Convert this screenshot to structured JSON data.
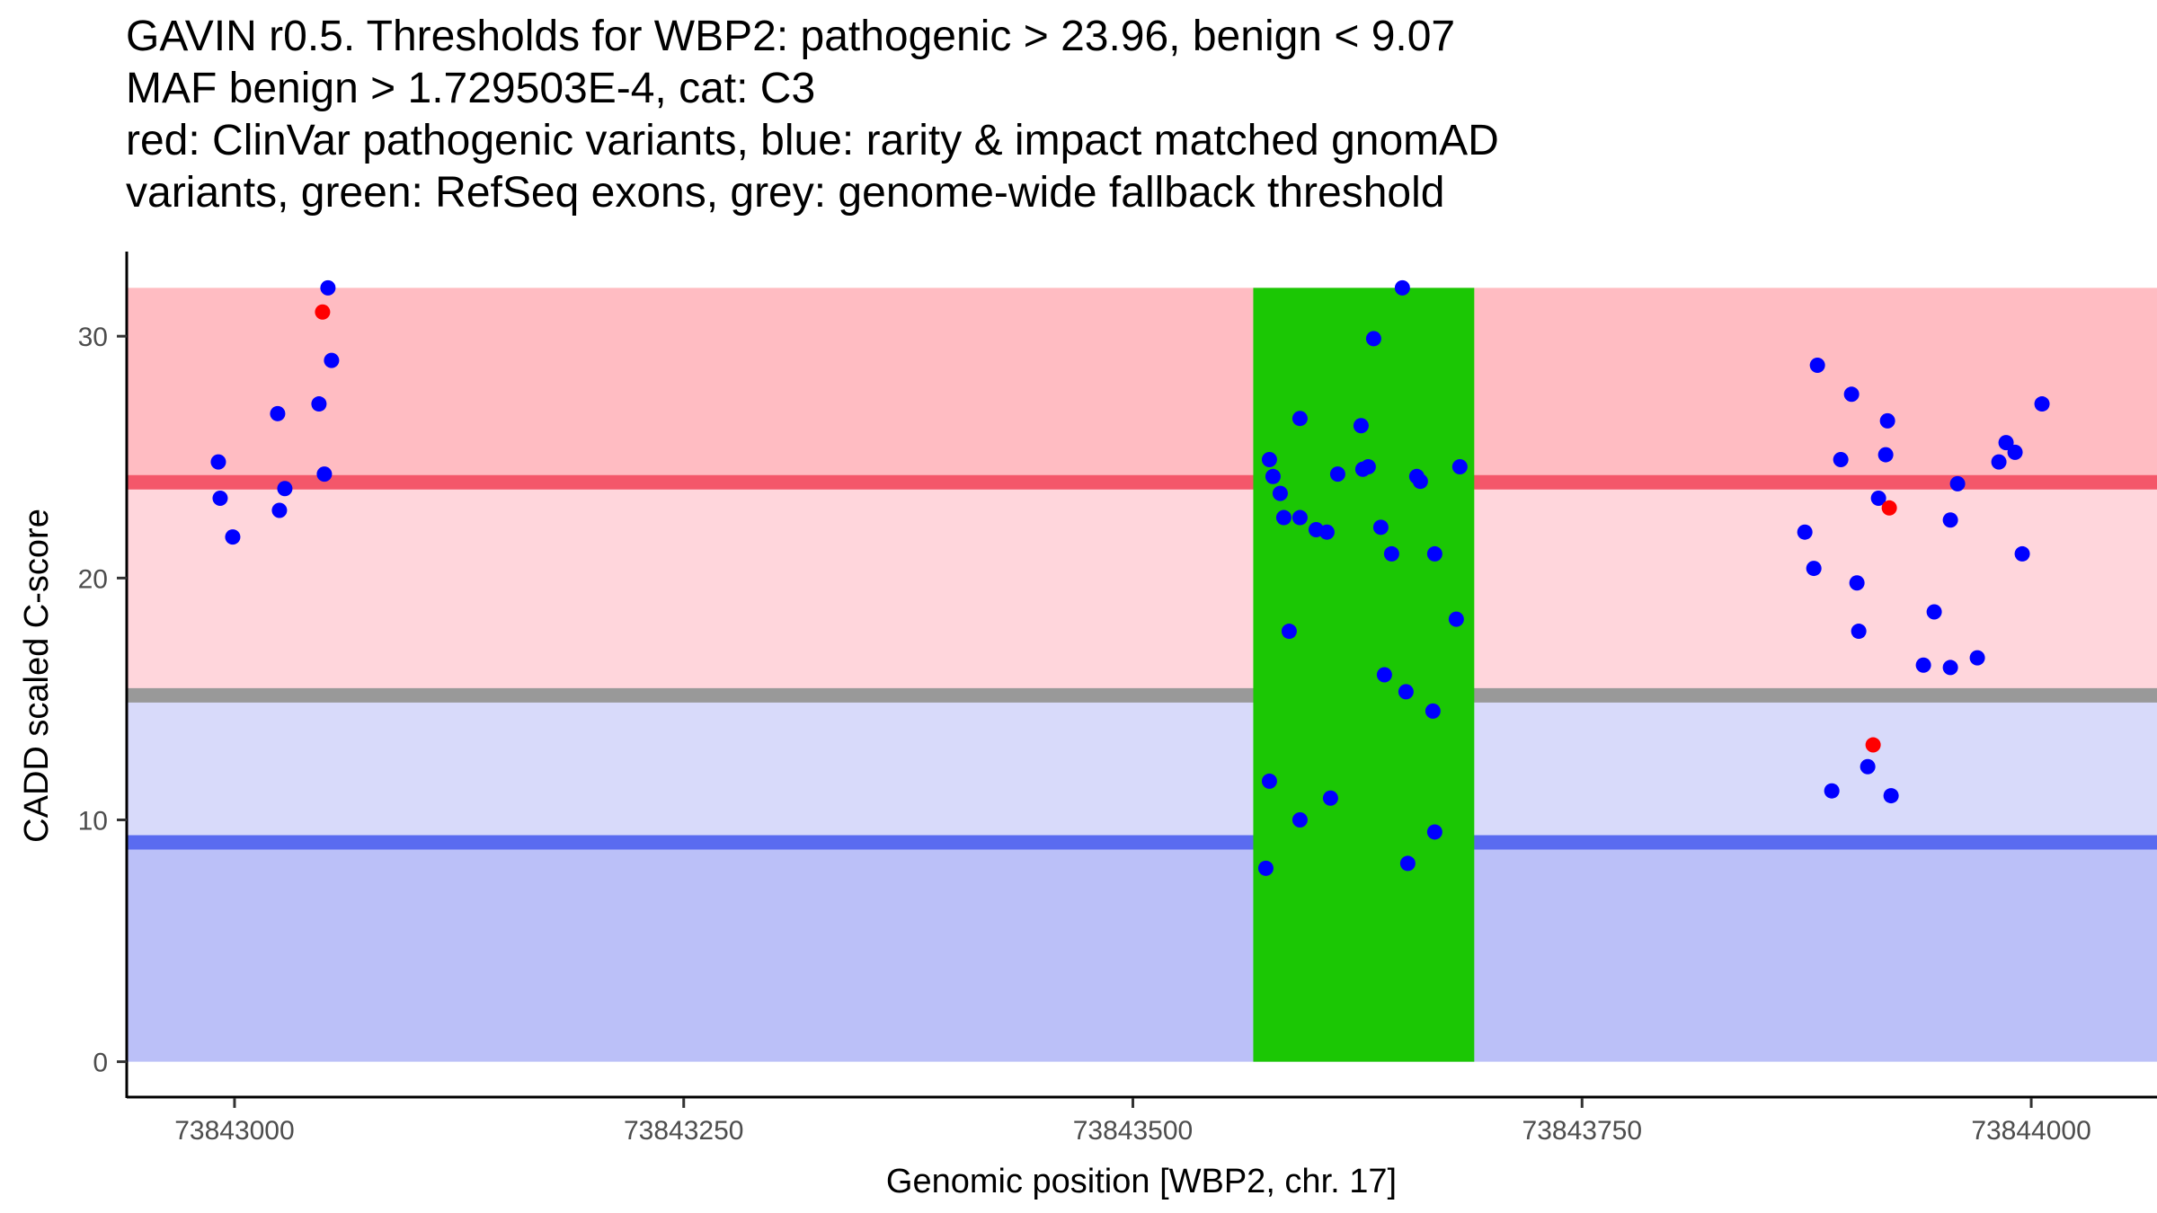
{
  "chart_data": {
    "type": "scatter",
    "title_lines": [
      "GAVIN r0.5. Thresholds for WBP2: pathogenic > 23.96, benign < 9.07",
      "MAF benign > 1.729503E-4, cat: C3",
      "red: ClinVar pathogenic variants, blue: rarity & impact matched gnomAD",
      "variants, green: RefSeq exons, grey: genome-wide fallback threshold"
    ],
    "xlabel": "Genomic position [WBP2, chr. 17]",
    "ylabel": "CADD scaled C-score",
    "xlim": [
      73842940,
      73844070
    ],
    "ylim": [
      -1.5,
      33.5
    ],
    "x_ticks": [
      {
        "value": 73843000,
        "label": "73843000"
      },
      {
        "value": 73843250,
        "label": "73843250"
      },
      {
        "value": 73843500,
        "label": "73843500"
      },
      {
        "value": 73843750,
        "label": "73843750"
      },
      {
        "value": 73844000,
        "label": "73844000"
      }
    ],
    "y_ticks": [
      {
        "value": 0,
        "label": "0"
      },
      {
        "value": 10,
        "label": "10"
      },
      {
        "value": 20,
        "label": "20"
      },
      {
        "value": 30,
        "label": "30"
      }
    ],
    "regions": [
      {
        "name": "pathogenic-zone",
        "y0": 23.96,
        "y1": 32,
        "color": "#FFBCC2"
      },
      {
        "name": "upper-intermediate-zone",
        "y0": 15.15,
        "y1": 23.96,
        "color": "#FFD6DC"
      },
      {
        "name": "lower-intermediate-zone",
        "y0": 9.07,
        "y1": 15.15,
        "color": "#D8DAFA"
      },
      {
        "name": "benign-zone",
        "y0": 0,
        "y1": 9.07,
        "color": "#BBC0F8"
      }
    ],
    "threshold_lines": [
      {
        "name": "pathogenic-threshold",
        "y": 23.96,
        "color": "#F4576A"
      },
      {
        "name": "fallback-threshold",
        "y": 15.15,
        "color": "#999999"
      },
      {
        "name": "benign-threshold",
        "y": 9.07,
        "color": "#5A6BF0"
      }
    ],
    "exon": {
      "x0": 73843567,
      "x1": 73843690,
      "y0": 0,
      "y1": 32,
      "color": "#1BC704"
    },
    "series": [
      {
        "name": "ClinVar pathogenic variants",
        "color": "#FF0000",
        "points": [
          {
            "x": 73843049,
            "y": 31.0
          },
          {
            "x": 73843921,
            "y": 22.9
          },
          {
            "x": 73843912,
            "y": 13.1
          }
        ]
      },
      {
        "name": "rarity & impact matched gnomAD variants",
        "color": "#0000FF",
        "points": [
          {
            "x": 73842991,
            "y": 24.8
          },
          {
            "x": 73842992,
            "y": 23.3
          },
          {
            "x": 73842999,
            "y": 21.7
          },
          {
            "x": 73843024,
            "y": 26.8
          },
          {
            "x": 73843025,
            "y": 22.8
          },
          {
            "x": 73843028,
            "y": 23.7
          },
          {
            "x": 73843047,
            "y": 27.2
          },
          {
            "x": 73843050,
            "y": 24.3
          },
          {
            "x": 73843052,
            "y": 32.0
          },
          {
            "x": 73843054,
            "y": 29.0
          },
          {
            "x": 73843576,
            "y": 24.9
          },
          {
            "x": 73843578,
            "y": 24.2
          },
          {
            "x": 73843582,
            "y": 23.5
          },
          {
            "x": 73843584,
            "y": 22.5
          },
          {
            "x": 73843587,
            "y": 17.8
          },
          {
            "x": 73843576,
            "y": 11.6
          },
          {
            "x": 73843574,
            "y": 8.0
          },
          {
            "x": 73843593,
            "y": 26.6
          },
          {
            "x": 73843593,
            "y": 22.5
          },
          {
            "x": 73843593,
            "y": 10.0
          },
          {
            "x": 73843602,
            "y": 22.0
          },
          {
            "x": 73843608,
            "y": 21.9
          },
          {
            "x": 73843610,
            "y": 10.9
          },
          {
            "x": 73843614,
            "y": 24.3
          },
          {
            "x": 73843627,
            "y": 26.3
          },
          {
            "x": 73843628,
            "y": 24.5
          },
          {
            "x": 73843631,
            "y": 24.6
          },
          {
            "x": 73843634,
            "y": 29.9
          },
          {
            "x": 73843638,
            "y": 22.1
          },
          {
            "x": 73843640,
            "y": 16.0
          },
          {
            "x": 73843644,
            "y": 21.0
          },
          {
            "x": 73843650,
            "y": 32.0
          },
          {
            "x": 73843652,
            "y": 15.3
          },
          {
            "x": 73843653,
            "y": 8.2
          },
          {
            "x": 73843658,
            "y": 24.2
          },
          {
            "x": 73843660,
            "y": 24.0
          },
          {
            "x": 73843667,
            "y": 14.5
          },
          {
            "x": 73843668,
            "y": 21.0
          },
          {
            "x": 73843668,
            "y": 9.5
          },
          {
            "x": 73843680,
            "y": 18.3
          },
          {
            "x": 73843682,
            "y": 24.6
          },
          {
            "x": 73843874,
            "y": 21.9
          },
          {
            "x": 73843879,
            "y": 20.4
          },
          {
            "x": 73843881,
            "y": 28.8
          },
          {
            "x": 73843889,
            "y": 11.2
          },
          {
            "x": 73843894,
            "y": 24.9
          },
          {
            "x": 73843900,
            "y": 27.6
          },
          {
            "x": 73843903,
            "y": 19.8
          },
          {
            "x": 73843904,
            "y": 17.8
          },
          {
            "x": 73843909,
            "y": 12.2
          },
          {
            "x": 73843915,
            "y": 23.3
          },
          {
            "x": 73843920,
            "y": 26.5
          },
          {
            "x": 73843919,
            "y": 25.1
          },
          {
            "x": 73843922,
            "y": 11.0
          },
          {
            "x": 73843940,
            "y": 16.4
          },
          {
            "x": 73843946,
            "y": 18.6
          },
          {
            "x": 73843955,
            "y": 16.3
          },
          {
            "x": 73843955,
            "y": 22.4
          },
          {
            "x": 73843959,
            "y": 23.9
          },
          {
            "x": 73843970,
            "y": 16.7
          },
          {
            "x": 73843982,
            "y": 24.8
          },
          {
            "x": 73843986,
            "y": 25.6
          },
          {
            "x": 73843991,
            "y": 25.2
          },
          {
            "x": 73843995,
            "y": 21.0
          },
          {
            "x": 73844006,
            "y": 27.2
          }
        ]
      }
    ]
  }
}
